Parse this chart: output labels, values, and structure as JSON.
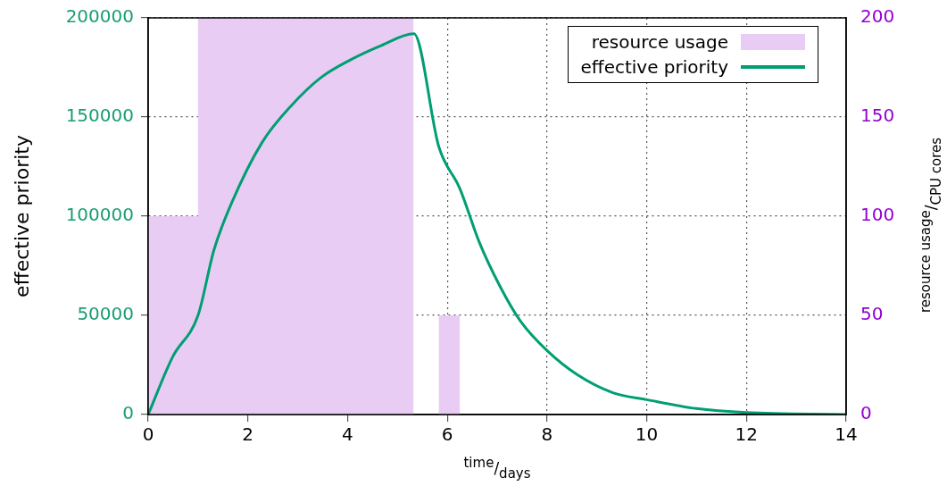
{
  "chart_data": {
    "type": "line",
    "xlabel": "$^{time}$/$_{days}$",
    "ylabel": "effective priority",
    "y2label": "$^{resource usage}$/$_{CPU cores}$",
    "xlim": [
      0,
      14
    ],
    "xticks": [
      0,
      2,
      4,
      6,
      8,
      10,
      12,
      14
    ],
    "ylim": [
      0,
      200000
    ],
    "yticks": [
      0,
      50000,
      100000,
      150000,
      200000
    ],
    "y2lim": [
      0,
      200
    ],
    "y2ticks": [
      0,
      50,
      100,
      150,
      200
    ],
    "grid": true,
    "legend": "top right",
    "series": [
      {
        "name": "resource usage",
        "type": "area",
        "axis": "y2",
        "color": "#e9ccf4",
        "x": [
          0,
          1,
          1,
          5.32,
          5.32,
          5.83,
          5.83,
          6.25,
          6.25,
          14
        ],
        "values": [
          100,
          100,
          200,
          200,
          0,
          0,
          50,
          50,
          0,
          0
        ]
      },
      {
        "name": "effective priority",
        "type": "line",
        "color": "#009e73",
        "x": [
          0,
          0.49,
          1,
          1.32,
          1.68,
          2.28,
          2.88,
          3.47,
          4.07,
          4.67,
          5.33,
          5.83,
          6.25,
          6.64,
          7.05,
          7.47,
          8.01,
          8.61,
          9.32,
          10,
          11,
          12,
          14
        ],
        "values": [
          0,
          29000,
          50000,
          83000,
          107000,
          137000,
          156000,
          170000,
          179000,
          186000,
          192000,
          135000,
          114000,
          87000,
          65000,
          47000,
          32000,
          20000,
          11000,
          7500,
          3000,
          1000,
          0
        ]
      }
    ]
  }
}
